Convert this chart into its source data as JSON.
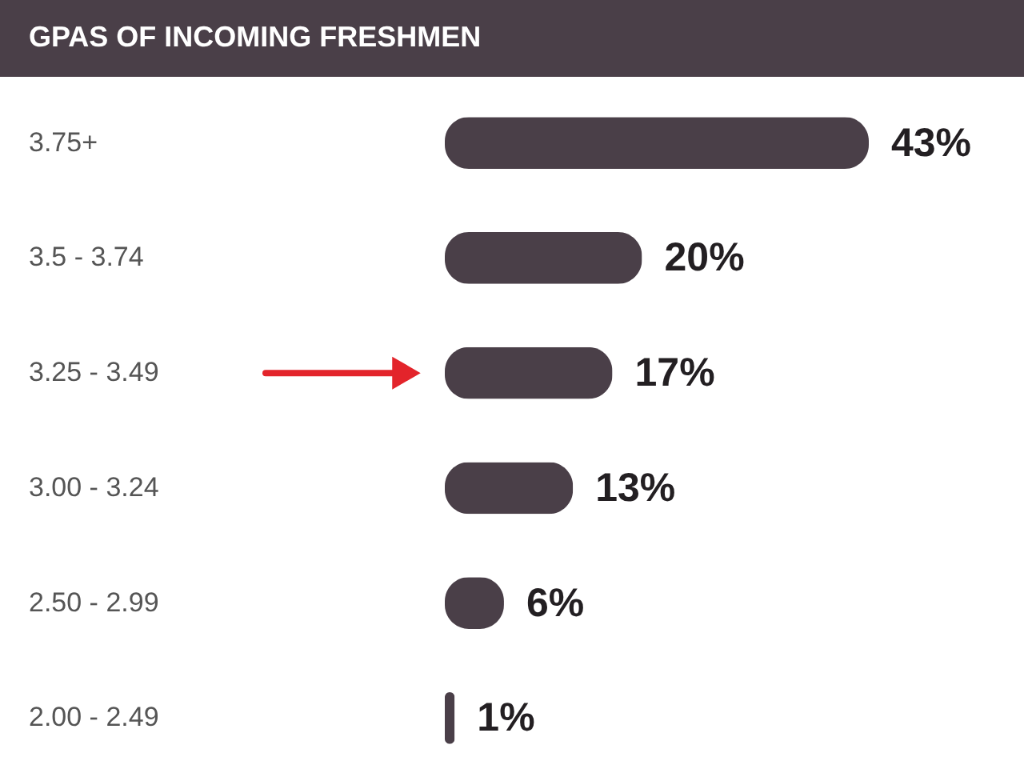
{
  "chart_data": {
    "type": "bar",
    "orientation": "horizontal",
    "title": "GPAS OF INCOMING FRESHMEN",
    "categories": [
      "3.75+",
      "3.5 - 3.74",
      "3.25 - 3.49",
      "3.00 - 3.24",
      "2.50 - 2.99",
      "2.00 - 2.49"
    ],
    "values": [
      43,
      20,
      17,
      13,
      6,
      1
    ],
    "value_labels": [
      "43%",
      "20%",
      "17%",
      "13%",
      "6%",
      "1%"
    ],
    "color": "#4a3f48"
  }
}
